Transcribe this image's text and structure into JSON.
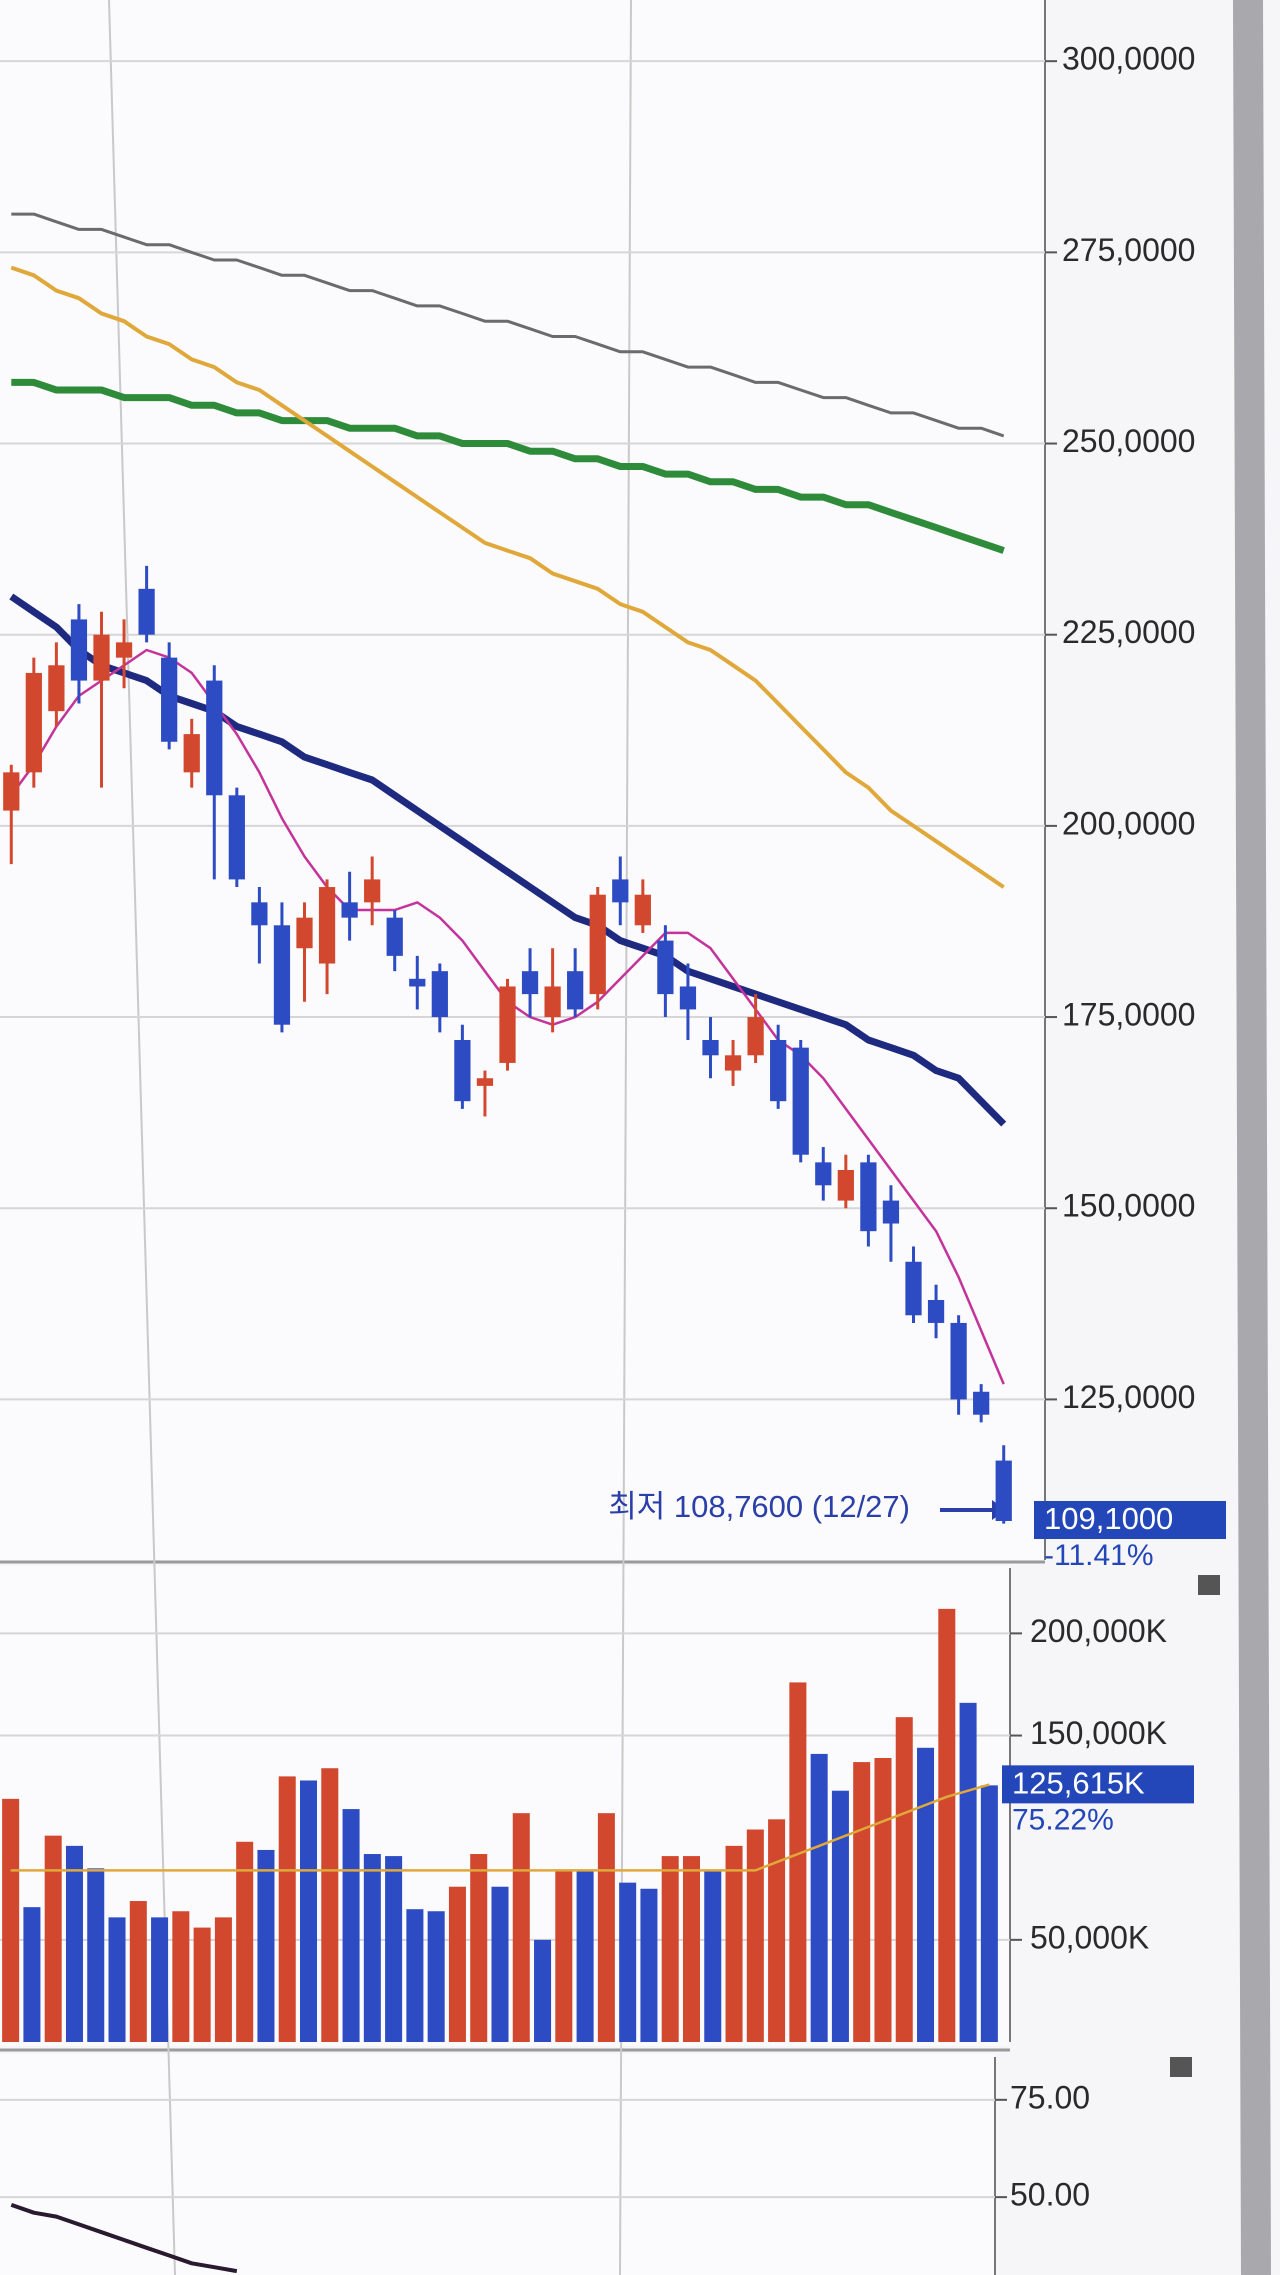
{
  "chart_data": [
    {
      "type": "candlestick",
      "open": [
        202,
        207,
        215,
        227,
        219,
        222,
        231,
        222,
        207,
        219,
        204,
        190,
        187,
        184,
        182,
        190,
        190,
        188,
        180,
        181,
        172,
        166,
        169,
        181,
        175,
        181,
        178,
        193,
        187,
        185,
        179,
        172,
        168,
        170,
        172,
        171,
        156,
        151,
        156,
        151,
        143,
        138,
        135,
        126,
        117
      ],
      "high": [
        208,
        222,
        224,
        229,
        228,
        227,
        234,
        224,
        214,
        221,
        205,
        192,
        190,
        190,
        193,
        194,
        196,
        189,
        183,
        182,
        174,
        168,
        180,
        184,
        184,
        184,
        192,
        196,
        193,
        187,
        182,
        175,
        172,
        178,
        174,
        172,
        158,
        157,
        157,
        153,
        145,
        140,
        136,
        127,
        119
      ],
      "low": [
        195,
        205,
        213,
        216,
        205,
        218,
        224,
        210,
        205,
        193,
        192,
        182,
        173,
        177,
        178,
        185,
        187,
        181,
        176,
        173,
        163,
        162,
        168,
        175,
        173,
        175,
        176,
        187,
        186,
        175,
        172,
        167,
        166,
        169,
        163,
        156,
        151,
        150,
        145,
        143,
        135,
        133,
        123,
        122,
        108.76
      ],
      "close": [
        207,
        220,
        221,
        219,
        225,
        224,
        225,
        211,
        212,
        204,
        193,
        187,
        174,
        188,
        192,
        188,
        193,
        183,
        179,
        175,
        164,
        167,
        179,
        178,
        179,
        176,
        191,
        190,
        191,
        178,
        176,
        170,
        170,
        175,
        164,
        157,
        153,
        155,
        147,
        148,
        136,
        135,
        125,
        123,
        109.1
      ],
      "up_color": "#d2482e",
      "down_color": "#2d4cc4",
      "lines": [
        {
          "color": "#6b6b6b",
          "width": 3,
          "values": [
            280,
            280,
            279,
            278,
            278,
            277,
            276,
            276,
            275,
            274,
            274,
            273,
            272,
            272,
            271,
            270,
            270,
            269,
            268,
            268,
            267,
            266,
            266,
            265,
            264,
            264,
            263,
            262,
            262,
            261,
            260,
            260,
            259,
            258,
            258,
            257,
            256,
            256,
            255,
            254,
            254,
            253,
            252,
            252,
            251
          ]
        },
        {
          "color": "#2e8b3a",
          "width": 7,
          "values": [
            258,
            258,
            257,
            257,
            257,
            256,
            256,
            256,
            255,
            255,
            254,
            254,
            253,
            253,
            253,
            252,
            252,
            252,
            251,
            251,
            250,
            250,
            250,
            249,
            249,
            248,
            248,
            247,
            247,
            246,
            246,
            245,
            245,
            244,
            244,
            243,
            243,
            242,
            242,
            241,
            240,
            239,
            238,
            237,
            236
          ]
        },
        {
          "color": "#e0a83a",
          "width": 4,
          "values": [
            273,
            272,
            270,
            269,
            267,
            266,
            264,
            263,
            261,
            260,
            258,
            257,
            255,
            253,
            251,
            249,
            247,
            245,
            243,
            241,
            239,
            237,
            236,
            235,
            233,
            232,
            231,
            229,
            228,
            226,
            224,
            223,
            221,
            219,
            216,
            213,
            210,
            207,
            205,
            202,
            200,
            198,
            196,
            194,
            192
          ]
        },
        {
          "color": "#1e2a80",
          "width": 7,
          "values": [
            230,
            228,
            226,
            223,
            221,
            220,
            219,
            217,
            216,
            215,
            213,
            212,
            211,
            209,
            208,
            207,
            206,
            204,
            202,
            200,
            198,
            196,
            194,
            192,
            190,
            188,
            187,
            185,
            184,
            183,
            181,
            180,
            179,
            178,
            177,
            176,
            175,
            174,
            172,
            171,
            170,
            168,
            167,
            164,
            161
          ]
        },
        {
          "color": "#c4339a",
          "width": 2.5,
          "values": [
            204,
            208,
            213,
            217,
            219,
            221,
            223,
            222,
            220,
            216,
            212,
            207,
            201,
            196,
            192,
            189,
            189,
            189,
            190,
            188,
            185,
            181,
            177,
            175,
            174,
            175,
            177,
            180,
            183,
            186,
            186,
            184,
            180,
            176,
            172,
            170,
            167,
            163,
            159,
            155,
            151,
            147,
            141,
            134,
            127
          ]
        }
      ],
      "ylim": [
        104,
        308
      ],
      "yticks": [
        {
          "value": 300,
          "label": "300,0000"
        },
        {
          "value": 275,
          "label": "275,0000"
        },
        {
          "value": 250,
          "label": "250,0000"
        },
        {
          "value": 225,
          "label": "225,0000"
        },
        {
          "value": 200,
          "label": "200,0000"
        },
        {
          "value": 175,
          "label": "175,0000"
        },
        {
          "value": 150,
          "label": "150,0000"
        },
        {
          "value": 125,
          "label": "125,0000"
        }
      ],
      "grid": true,
      "annotation": "최저 108,7600 (12/27)",
      "current": {
        "value": 109.1,
        "label": "109,1000"
      },
      "change": {
        "value": -11.41,
        "label": "-11.41%"
      }
    },
    {
      "type": "bar",
      "values": [
        119000,
        66000,
        101000,
        96000,
        85000,
        61000,
        69000,
        61000,
        64000,
        56000,
        61000,
        98000,
        94000,
        130000,
        128000,
        134000,
        114000,
        92000,
        91000,
        65000,
        64000,
        76000,
        92000,
        76000,
        112000,
        50000,
        84000,
        84000,
        112000,
        78000,
        75000,
        91000,
        91000,
        84000,
        96000,
        104000,
        109000,
        176000,
        141000,
        123000,
        137000,
        139000,
        159000,
        144000,
        212000,
        166000,
        125615
      ],
      "colors": [
        "#d2482e",
        "#2d4cc4",
        "#d2482e",
        "#2d4cc4",
        "#2d4cc4",
        "#2d4cc4",
        "#d2482e",
        "#2d4cc4",
        "#d2482e",
        "#d2482e",
        "#d2482e",
        "#d2482e",
        "#2d4cc4",
        "#d2482e",
        "#2d4cc4",
        "#d2482e",
        "#2d4cc4",
        "#2d4cc4",
        "#2d4cc4",
        "#2d4cc4",
        "#2d4cc4",
        "#d2482e",
        "#d2482e",
        "#2d4cc4",
        "#d2482e",
        "#2d4cc4",
        "#d2482e",
        "#2d4cc4",
        "#d2482e",
        "#2d4cc4",
        "#2d4cc4",
        "#d2482e",
        "#d2482e",
        "#2d4cc4",
        "#d2482e",
        "#d2482e",
        "#d2482e",
        "#d2482e",
        "#2d4cc4",
        "#2d4cc4",
        "#d2482e",
        "#d2482e",
        "#d2482e",
        "#2d4cc4",
        "#d2482e",
        "#2d4cc4",
        "#2d4cc4"
      ],
      "lines": [
        {
          "color": "#e0a83a",
          "width": 2.5,
          "values": [
            84000,
            84000,
            84000,
            84000,
            84000,
            84000,
            84000,
            84000,
            84000,
            84000,
            84000,
            84000,
            84000,
            84000,
            84000,
            84000,
            84000,
            84000,
            84000,
            84000,
            84000,
            84000,
            84000,
            84000,
            84000,
            84000,
            84000,
            84000,
            84000,
            84000,
            84000,
            84000,
            84000,
            84000,
            84000,
            84000,
            88000,
            92000,
            96000,
            100000,
            104000,
            108000,
            112000,
            116000,
            120000,
            123000,
            126000
          ]
        }
      ],
      "ylim": [
        0,
        232000
      ],
      "yticks": [
        {
          "value": 200000,
          "label": "200,000K"
        },
        {
          "value": 150000,
          "label": "150,000K"
        },
        {
          "value": 50000,
          "label": "50,000K"
        }
      ],
      "grid": true,
      "current": {
        "value": 125615,
        "label": "125,615K"
      },
      "change": {
        "value": 75.22,
        "label": "75.22%"
      }
    },
    {
      "type": "line",
      "lines": [
        {
          "color": "#2a1a30",
          "width": 4,
          "values": [
            48,
            46,
            45,
            43,
            41,
            39,
            37,
            35,
            33,
            32,
            31,
            null,
            null,
            null,
            null,
            null,
            null,
            null,
            null,
            null,
            null,
            null,
            null,
            null,
            null,
            null,
            null,
            null,
            null,
            null,
            null,
            null,
            null,
            null,
            null,
            null,
            null,
            null,
            null,
            null,
            null,
            null,
            null,
            null,
            null
          ]
        }
      ],
      "ylim": [
        30,
        86
      ],
      "yticks": [
        {
          "value": 75,
          "label": "75.00"
        },
        {
          "value": 50,
          "label": "50.00"
        }
      ],
      "grid": true
    }
  ]
}
